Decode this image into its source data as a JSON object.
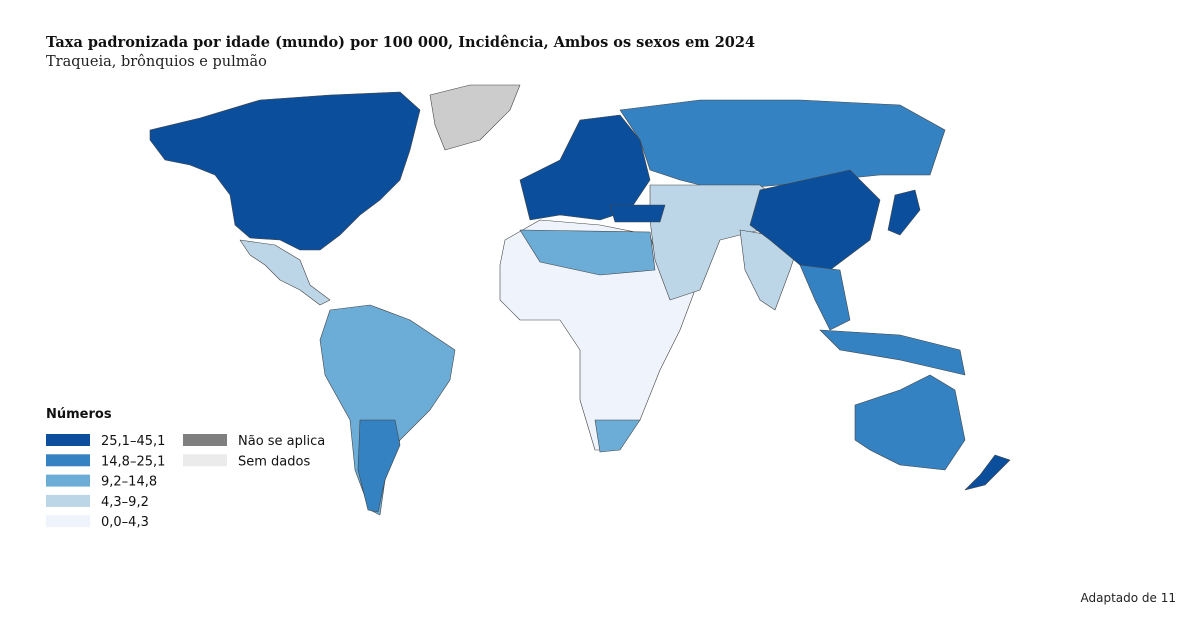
{
  "header": {
    "title": "Taxa padronizada por idade (mundo) por 100 000, Incidência, Ambos os sexos em 2024",
    "subtitle": "Traqueia, brônquios e pulmão"
  },
  "legend": {
    "title": "Números",
    "items": [
      {
        "label": "25,1–45,1",
        "color": "#0b4f9c"
      },
      {
        "label": "14,8–25,1",
        "color": "#3482c2"
      },
      {
        "label": "9,2–14,8",
        "color": "#6badd6"
      },
      {
        "label": "4,3–9,2",
        "color": "#bcd6e8"
      },
      {
        "label": "0,0–4,3",
        "color": "#eef3fc"
      }
    ],
    "other": [
      {
        "label": "Não se aplica",
        "color": "#7f7f7f"
      },
      {
        "label": "Sem dados",
        "color": "#ebebeb"
      }
    ]
  },
  "footer": "Adaptado de 11"
}
